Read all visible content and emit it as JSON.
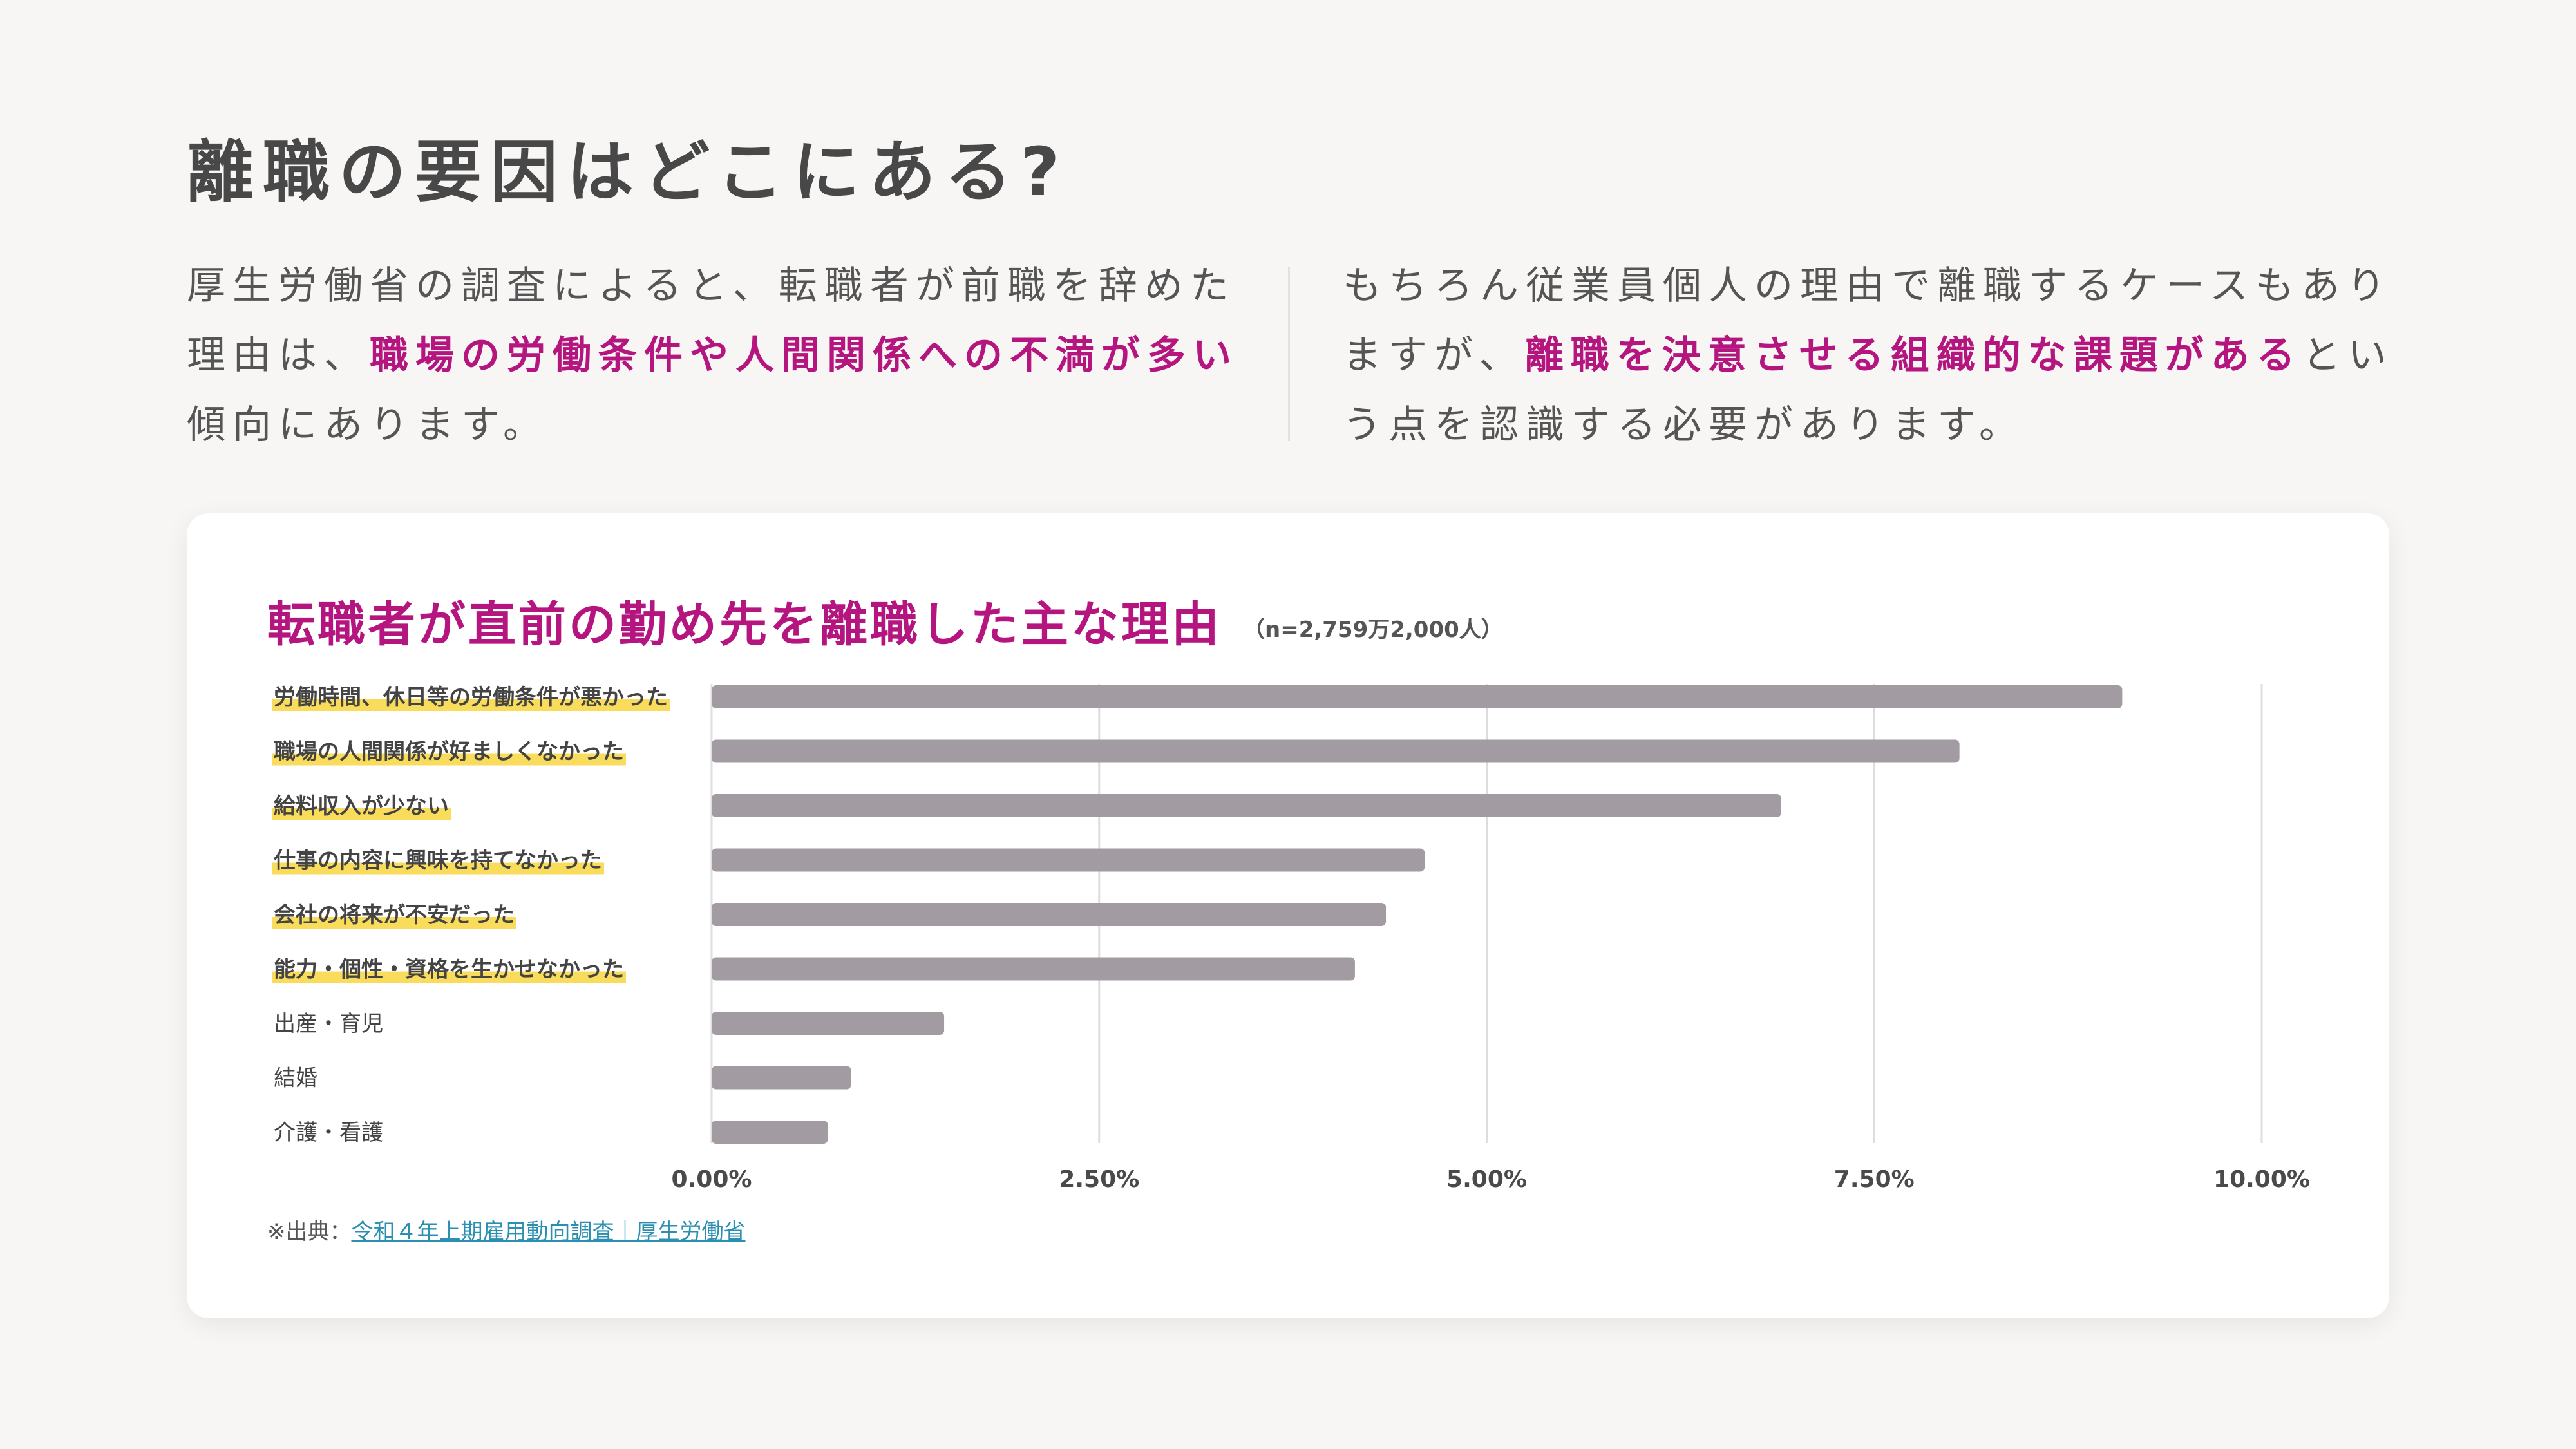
{
  "title": "離職の要因はどこにある?",
  "intro_left": {
    "pre": "厚生労働省の調査によると、転職者が前職を辞めた理由は、",
    "highlight": "職場の労働条件や人間関係への不満が多い",
    "post": "傾向にあります。"
  },
  "intro_right": {
    "pre": "もちろん従業員個人の理由で離職するケースもありますが、",
    "highlight": "離職を決意させる組織的な課題がある",
    "post": "という点を認識する必要があります。"
  },
  "colors": {
    "accent": "#b5157f",
    "bar": "#a39ba2",
    "label_highlight": "#f9dc5c",
    "grid": "#dddddd"
  },
  "chart_data": {
    "type": "bar",
    "orientation": "horizontal",
    "title": "転職者が直前の勤め先を離職した主な理由",
    "note": "（n=2,759万2,000人）",
    "categories": [
      "労働時間、休日等の労働条件が悪かった",
      "職場の人間関係が好ましくなかった",
      "給料収入が少ない",
      "仕事の内容に興味を持てなかった",
      "会社の将来が不安だった",
      "能力・個性・資格を生かせなかった",
      "出産・育児",
      "結婚",
      "介護・看護"
    ],
    "highlighted": [
      true,
      true,
      true,
      true,
      true,
      true,
      false,
      false,
      false
    ],
    "values": [
      9.1,
      8.05,
      6.9,
      4.6,
      4.35,
      4.15,
      1.5,
      0.9,
      0.75
    ],
    "xlim": [
      0,
      10
    ],
    "xticks": [
      "0.00%",
      "2.50%",
      "5.00%",
      "7.50%",
      "10.00%"
    ],
    "grid": true
  },
  "source": {
    "prefix": "※出典：",
    "link_text": "令和４年上期雇用動向調査｜厚生労働省"
  }
}
